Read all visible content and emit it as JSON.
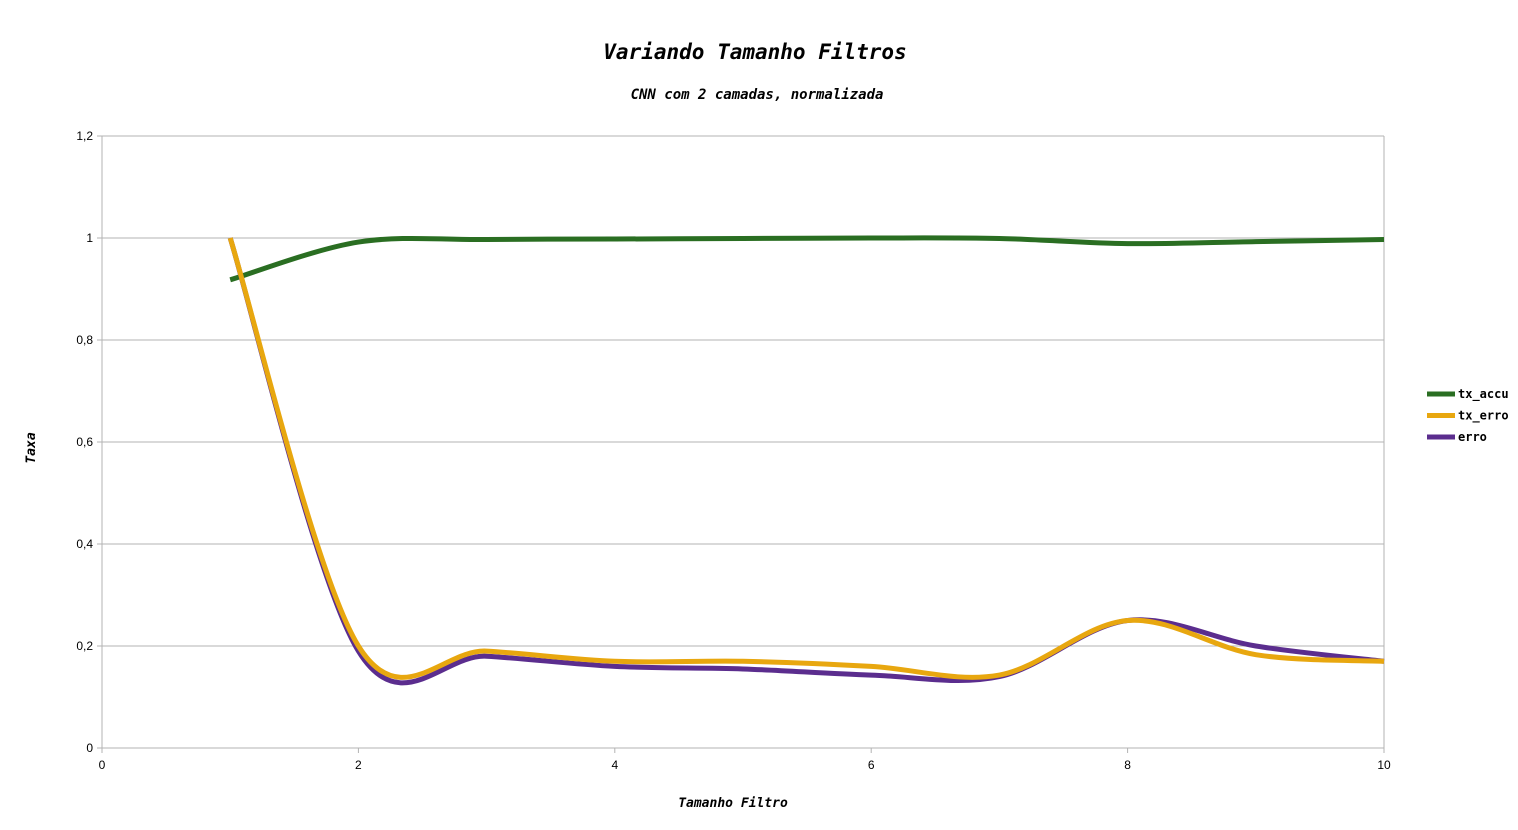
{
  "chart_data": {
    "type": "line",
    "title": "Variando Tamanho Filtros",
    "subtitle": "CNN com 2 camadas, normalizada",
    "xlabel": "Tamanho Filtro",
    "ylabel": "Taxa",
    "xlim": [
      0,
      10
    ],
    "ylim": [
      0,
      1.2
    ],
    "x_ticks": [
      0,
      2,
      4,
      6,
      8,
      10
    ],
    "x_tick_labels": [
      "0",
      "2",
      "4",
      "6",
      "8",
      "10"
    ],
    "y_ticks": [
      0,
      0.2,
      0.4,
      0.6,
      0.8,
      1,
      1.2
    ],
    "y_tick_labels": [
      "0",
      "0,2",
      "0,4",
      "0,6",
      "0,8",
      "1",
      "1,2"
    ],
    "grid": true,
    "legend_position": "right",
    "smooth": true,
    "x": [
      1,
      2,
      3,
      4,
      5,
      6,
      7,
      8,
      9,
      10
    ],
    "series": [
      {
        "name": "tx_accu",
        "color": "#2a6e22",
        "values": [
          0.918,
          0.992,
          0.997,
          0.998,
          0.999,
          1.0,
          0.999,
          0.989,
          0.993,
          0.997
        ]
      },
      {
        "name": "tx_erro",
        "color": "#e8a70f",
        "values": [
          1.0,
          0.2,
          0.19,
          0.17,
          0.17,
          0.16,
          0.143,
          0.25,
          0.183,
          0.17
        ]
      },
      {
        "name": "erro",
        "color": "#5b2d8e",
        "values": [
          1.0,
          0.19,
          0.18,
          0.16,
          0.155,
          0.143,
          0.14,
          0.25,
          0.2,
          0.17
        ]
      }
    ]
  }
}
